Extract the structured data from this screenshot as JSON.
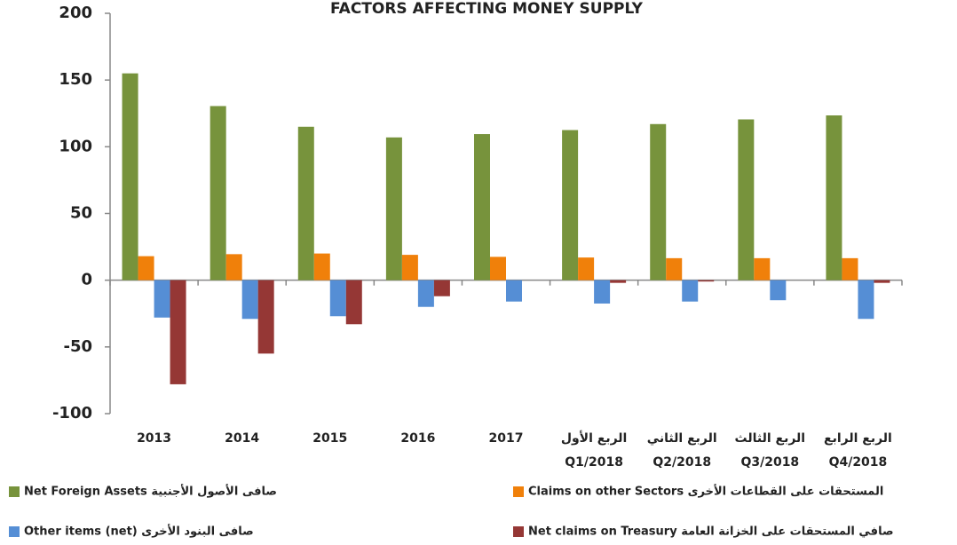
{
  "chart_data": {
    "type": "bar",
    "title": "FACTORS AFFECTING MONEY SUPPLY",
    "categories": [
      "2013",
      "2014",
      "2015",
      "2016",
      "2017",
      "الربع الأول\nQ1/2018",
      "الربع الثاني\nQ2/2018",
      "الربع الثالث\nQ3/2018",
      "الربع الرابع\nQ4/2018"
    ],
    "series": [
      {
        "name": "Net Foreign Assets  صافى الأصول الأجنبية",
        "color": "#77933c",
        "values": [
          155,
          130.5,
          115,
          107,
          109.5,
          112.5,
          117,
          120.5,
          123.5
        ]
      },
      {
        "name": "Claims on other Sectors  المستحقات على القطاعات الأخرى",
        "color": "#f0800a",
        "values": [
          18,
          19.5,
          20,
          19,
          17.5,
          17,
          16.5,
          16.5,
          16.5
        ]
      },
      {
        "name": "Other items (net)  صافى البنود الأخرى",
        "color": "#558ed5",
        "values": [
          -28,
          -29,
          -27,
          -20,
          -16,
          -17.5,
          -16,
          -15,
          -29
        ]
      },
      {
        "name": "Net claims on Treasury  صافي المستحقات على الخزانة العامة",
        "color": "#953735",
        "values": [
          -78,
          -55,
          -33,
          -12,
          0,
          -2,
          -1,
          0,
          -2
        ]
      }
    ],
    "ylim": [
      -100,
      200
    ],
    "yticks": [
      -100,
      -50,
      0,
      50,
      100,
      150,
      200
    ],
    "grid": false
  }
}
